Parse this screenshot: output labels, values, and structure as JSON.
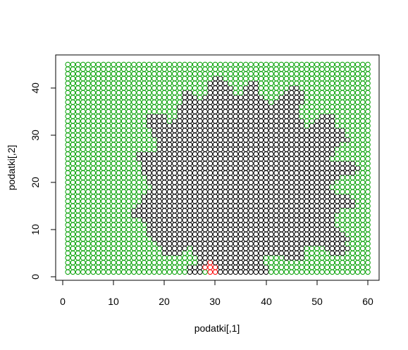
{
  "chart_data": {
    "type": "scatter",
    "title": "",
    "xlabel": "podatki[,1]",
    "ylabel": "podatki[,2]",
    "xlim": [
      1,
      60
    ],
    "ylim": [
      1,
      45
    ],
    "x_ticks": [
      "0",
      "10",
      "20",
      "30",
      "40",
      "50",
      "60"
    ],
    "y_ticks": [
      "0",
      "10",
      "20",
      "30",
      "40"
    ],
    "grid": false,
    "legend": "none",
    "marker": "open-circle",
    "grid_points": {
      "x_from": 1,
      "x_to": 60,
      "x_step": 1,
      "y_from": 1,
      "y_to": 45,
      "y_step": 1
    },
    "series": [
      {
        "color": "#00a000",
        "description": "all grid points not in the other two groups"
      },
      {
        "color": "#000000",
        "rows": [
          {
            "y": 42,
            "ranges": [
              [
                30,
                31
              ]
            ]
          },
          {
            "y": 41,
            "ranges": [
              [
                29,
                32
              ],
              [
                37,
                38
              ]
            ]
          },
          {
            "y": 40,
            "ranges": [
              [
                29,
                33
              ],
              [
                36,
                38
              ],
              [
                45,
                46
              ]
            ]
          },
          {
            "y": 39,
            "ranges": [
              [
                24,
                25
              ],
              [
                29,
                33
              ],
              [
                36,
                38
              ],
              [
                44,
                47
              ]
            ]
          },
          {
            "y": 38,
            "ranges": [
              [
                24,
                26
              ],
              [
                28,
                34
              ],
              [
                35,
                39
              ],
              [
                43,
                47
              ]
            ]
          },
          {
            "y": 37,
            "ranges": [
              [
                24,
                40
              ],
              [
                42,
                47
              ]
            ]
          },
          {
            "y": 36,
            "ranges": [
              [
                23,
                46
              ]
            ]
          },
          {
            "y": 35,
            "ranges": [
              [
                23,
                46
              ]
            ]
          },
          {
            "y": 34,
            "ranges": [
              [
                17,
                20
              ],
              [
                23,
                46
              ],
              [
                51,
                53
              ]
            ]
          },
          {
            "y": 33,
            "ranges": [
              [
                17,
                20
              ],
              [
                22,
                47
              ],
              [
                50,
                53
              ]
            ]
          },
          {
            "y": 32,
            "ranges": [
              [
                17,
                47
              ],
              [
                49,
                53
              ]
            ]
          },
          {
            "y": 31,
            "ranges": [
              [
                18,
                55
              ]
            ]
          },
          {
            "y": 30,
            "ranges": [
              [
                18,
                55
              ]
            ]
          },
          {
            "y": 29,
            "ranges": [
              [
                19,
                56
              ]
            ]
          },
          {
            "y": 28,
            "ranges": [
              [
                19,
                54
              ]
            ]
          },
          {
            "y": 27,
            "ranges": [
              [
                19,
                53
              ]
            ]
          },
          {
            "y": 26,
            "ranges": [
              [
                15,
                53
              ]
            ]
          },
          {
            "y": 25,
            "ranges": [
              [
                15,
                52
              ]
            ]
          },
          {
            "y": 24,
            "ranges": [
              [
                16,
                57
              ]
            ]
          },
          {
            "y": 23,
            "ranges": [
              [
                16,
                58
              ]
            ]
          },
          {
            "y": 22,
            "ranges": [
              [
                16,
                57
              ]
            ]
          },
          {
            "y": 21,
            "ranges": [
              [
                17,
                54
              ]
            ]
          },
          {
            "y": 20,
            "ranges": [
              [
                17,
                53
              ]
            ]
          },
          {
            "y": 19,
            "ranges": [
              [
                18,
                52
              ]
            ]
          },
          {
            "y": 18,
            "ranges": [
              [
                17,
                53
              ]
            ]
          },
          {
            "y": 17,
            "ranges": [
              [
                16,
                56
              ]
            ]
          },
          {
            "y": 16,
            "ranges": [
              [
                16,
                57
              ]
            ]
          },
          {
            "y": 15,
            "ranges": [
              [
                15,
                57
              ]
            ]
          },
          {
            "y": 14,
            "ranges": [
              [
                14,
                54
              ]
            ]
          },
          {
            "y": 13,
            "ranges": [
              [
                14,
                53
              ]
            ]
          },
          {
            "y": 12,
            "ranges": [
              [
                16,
                53
              ]
            ]
          },
          {
            "y": 11,
            "ranges": [
              [
                17,
                53
              ]
            ]
          },
          {
            "y": 10,
            "ranges": [
              [
                17,
                54
              ]
            ]
          },
          {
            "y": 9,
            "ranges": [
              [
                17,
                55
              ]
            ]
          },
          {
            "y": 8,
            "ranges": [
              [
                18,
                56
              ]
            ]
          },
          {
            "y": 7,
            "ranges": [
              [
                19,
                55
              ]
            ]
          },
          {
            "y": 6,
            "ranges": [
              [
                20,
                24
              ],
              [
                26,
                47
              ],
              [
                52,
                56
              ]
            ]
          },
          {
            "y": 5,
            "ranges": [
              [
                20,
                23
              ],
              [
                26,
                47
              ],
              [
                53,
                55
              ]
            ]
          },
          {
            "y": 4,
            "ranges": [
              [
                27,
                39
              ],
              [
                44,
                47
              ]
            ]
          },
          {
            "y": 3,
            "ranges": [
              [
                27,
                39
              ]
            ]
          },
          {
            "y": 2,
            "ranges": [
              [
                25,
                27
              ],
              [
                31,
                40
              ]
            ]
          },
          {
            "y": 1,
            "ranges": [
              [
                25,
                27
              ],
              [
                31,
                40
              ]
            ]
          }
        ]
      },
      {
        "color": "#ff0000",
        "points": [
          [
            29,
            1
          ],
          [
            30,
            1
          ],
          [
            28,
            2
          ],
          [
            29,
            2
          ],
          [
            30,
            2
          ],
          [
            29,
            3
          ]
        ]
      }
    ]
  }
}
